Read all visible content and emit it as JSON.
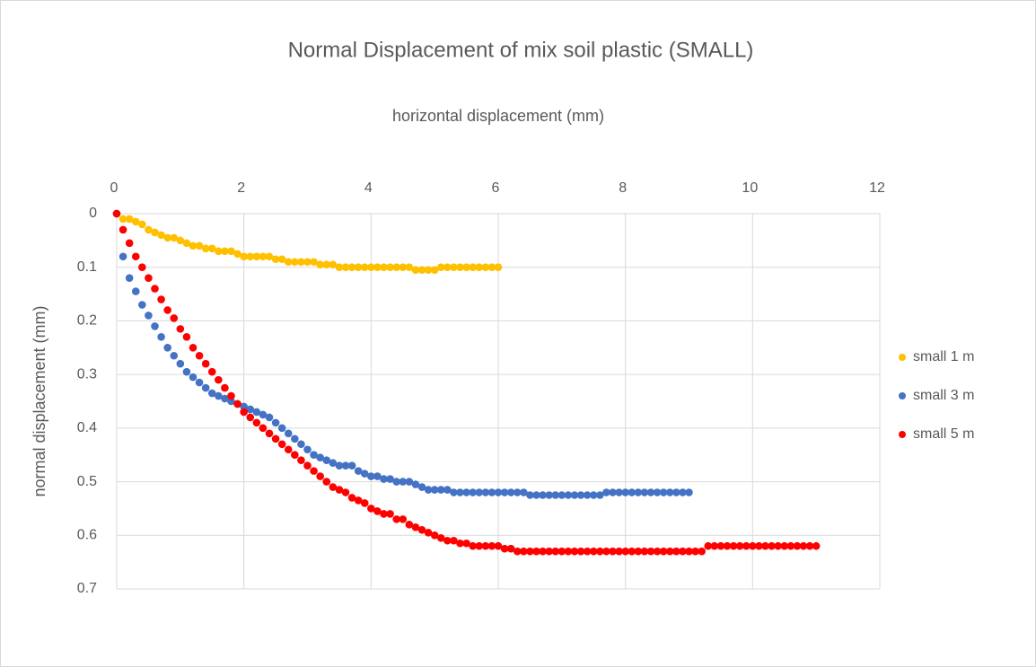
{
  "chart_data": {
    "type": "scatter",
    "title": "Normal Displacement of mix soil plastic (SMALL)",
    "x_label": "horizontal displacement (mm)",
    "y_label": "normal displacement (mm)",
    "xlim": [
      0,
      12
    ],
    "xticks": [
      0,
      2,
      4,
      6,
      8,
      10,
      12
    ],
    "ylim": [
      0,
      0.7
    ],
    "yticks": [
      0,
      0.1,
      0.2,
      0.3,
      0.4,
      0.5,
      0.6,
      0.7
    ],
    "y_inverted": true,
    "x_axis_position": "top",
    "grid": true,
    "legend": "right",
    "series": [
      {
        "name": "small 1 m",
        "color": "#ffc000",
        "x": [
          0,
          0.1,
          0.2,
          0.3,
          0.4,
          0.5,
          0.6,
          0.7,
          0.8,
          0.9,
          1,
          1.1,
          1.2,
          1.3,
          1.4,
          1.5,
          1.6,
          1.7,
          1.8,
          1.9,
          2,
          2.1,
          2.2,
          2.3,
          2.4,
          2.5,
          2.6,
          2.7,
          2.8,
          2.9,
          3,
          3.1,
          3.2,
          3.3,
          3.4,
          3.5,
          3.6,
          3.7,
          3.8,
          3.9,
          4,
          4.1,
          4.2,
          4.3,
          4.4,
          4.5,
          4.6,
          4.7,
          4.8,
          4.9,
          5,
          5.1,
          5.2,
          5.3,
          5.4,
          5.5,
          5.6,
          5.7,
          5.8,
          5.9,
          6
        ],
        "values": [
          0,
          0.01,
          0.01,
          0.015,
          0.02,
          0.03,
          0.035,
          0.04,
          0.045,
          0.045,
          0.05,
          0.055,
          0.06,
          0.06,
          0.065,
          0.065,
          0.07,
          0.07,
          0.07,
          0.075,
          0.08,
          0.08,
          0.08,
          0.08,
          0.08,
          0.085,
          0.085,
          0.09,
          0.09,
          0.09,
          0.09,
          0.09,
          0.095,
          0.095,
          0.095,
          0.1,
          0.1,
          0.1,
          0.1,
          0.1,
          0.1,
          0.1,
          0.1,
          0.1,
          0.1,
          0.1,
          0.1,
          0.105,
          0.105,
          0.105,
          0.105,
          0.1,
          0.1,
          0.1,
          0.1,
          0.1,
          0.1,
          0.1,
          0.1,
          0.1,
          0.1
        ]
      },
      {
        "name": "small 3 m",
        "color": "#4472c4",
        "x": [
          0,
          0.1,
          0.2,
          0.3,
          0.4,
          0.5,
          0.6,
          0.7,
          0.8,
          0.9,
          1,
          1.1,
          1.2,
          1.3,
          1.4,
          1.5,
          1.6,
          1.7,
          1.8,
          1.9,
          2,
          2.1,
          2.2,
          2.3,
          2.4,
          2.5,
          2.6,
          2.7,
          2.8,
          2.9,
          3,
          3.1,
          3.2,
          3.3,
          3.4,
          3.5,
          3.6,
          3.7,
          3.8,
          3.9,
          4,
          4.1,
          4.2,
          4.3,
          4.4,
          4.5,
          4.6,
          4.7,
          4.8,
          4.9,
          5,
          5.1,
          5.2,
          5.3,
          5.4,
          5.5,
          5.6,
          5.7,
          5.8,
          5.9,
          6,
          6.1,
          6.2,
          6.3,
          6.4,
          6.5,
          6.6,
          6.7,
          6.8,
          6.9,
          7,
          7.1,
          7.2,
          7.3,
          7.4,
          7.5,
          7.6,
          7.7,
          7.8,
          7.9,
          8,
          8.1,
          8.2,
          8.3,
          8.4,
          8.5,
          8.6,
          8.7,
          8.8,
          8.9,
          9
        ],
        "values": [
          0,
          0.08,
          0.12,
          0.145,
          0.17,
          0.19,
          0.21,
          0.23,
          0.25,
          0.265,
          0.28,
          0.295,
          0.305,
          0.315,
          0.325,
          0.335,
          0.34,
          0.345,
          0.35,
          0.355,
          0.36,
          0.365,
          0.37,
          0.375,
          0.38,
          0.39,
          0.4,
          0.41,
          0.42,
          0.43,
          0.44,
          0.45,
          0.455,
          0.46,
          0.465,
          0.47,
          0.47,
          0.47,
          0.48,
          0.485,
          0.49,
          0.49,
          0.495,
          0.495,
          0.5,
          0.5,
          0.5,
          0.505,
          0.51,
          0.515,
          0.515,
          0.515,
          0.515,
          0.52,
          0.52,
          0.52,
          0.52,
          0.52,
          0.52,
          0.52,
          0.52,
          0.52,
          0.52,
          0.52,
          0.52,
          0.525,
          0.525,
          0.525,
          0.525,
          0.525,
          0.525,
          0.525,
          0.525,
          0.525,
          0.525,
          0.525,
          0.525,
          0.52,
          0.52,
          0.52,
          0.52,
          0.52,
          0.52,
          0.52,
          0.52,
          0.52,
          0.52,
          0.52,
          0.52,
          0.52,
          0.52
        ]
      },
      {
        "name": "small 5 m",
        "color": "#ff0000",
        "x": [
          0,
          0.1,
          0.2,
          0.3,
          0.4,
          0.5,
          0.6,
          0.7,
          0.8,
          0.9,
          1,
          1.1,
          1.2,
          1.3,
          1.4,
          1.5,
          1.6,
          1.7,
          1.8,
          1.9,
          2,
          2.1,
          2.2,
          2.3,
          2.4,
          2.5,
          2.6,
          2.7,
          2.8,
          2.9,
          3,
          3.1,
          3.2,
          3.3,
          3.4,
          3.5,
          3.6,
          3.7,
          3.8,
          3.9,
          4,
          4.1,
          4.2,
          4.3,
          4.4,
          4.5,
          4.6,
          4.7,
          4.8,
          4.9,
          5,
          5.1,
          5.2,
          5.3,
          5.4,
          5.5,
          5.6,
          5.7,
          5.8,
          5.9,
          6,
          6.1,
          6.2,
          6.3,
          6.4,
          6.5,
          6.6,
          6.7,
          6.8,
          6.9,
          7,
          7.1,
          7.2,
          7.3,
          7.4,
          7.5,
          7.6,
          7.7,
          7.8,
          7.9,
          8,
          8.1,
          8.2,
          8.3,
          8.4,
          8.5,
          8.6,
          8.7,
          8.8,
          8.9,
          9,
          9.1,
          9.2,
          9.3,
          9.4,
          9.5,
          9.6,
          9.7,
          9.8,
          9.9,
          10,
          10.1,
          10.2,
          10.3,
          10.4,
          10.5,
          10.6,
          10.7,
          10.8,
          10.9,
          11
        ],
        "values": [
          0,
          0.03,
          0.055,
          0.08,
          0.1,
          0.12,
          0.14,
          0.16,
          0.18,
          0.195,
          0.215,
          0.23,
          0.25,
          0.265,
          0.28,
          0.295,
          0.31,
          0.325,
          0.34,
          0.355,
          0.37,
          0.38,
          0.39,
          0.4,
          0.41,
          0.42,
          0.43,
          0.44,
          0.45,
          0.46,
          0.47,
          0.48,
          0.49,
          0.5,
          0.51,
          0.515,
          0.52,
          0.53,
          0.535,
          0.54,
          0.55,
          0.555,
          0.56,
          0.56,
          0.57,
          0.57,
          0.58,
          0.585,
          0.59,
          0.595,
          0.6,
          0.605,
          0.61,
          0.61,
          0.615,
          0.615,
          0.62,
          0.62,
          0.62,
          0.62,
          0.62,
          0.625,
          0.625,
          0.63,
          0.63,
          0.63,
          0.63,
          0.63,
          0.63,
          0.63,
          0.63,
          0.63,
          0.63,
          0.63,
          0.63,
          0.63,
          0.63,
          0.63,
          0.63,
          0.63,
          0.63,
          0.63,
          0.63,
          0.63,
          0.63,
          0.63,
          0.63,
          0.63,
          0.63,
          0.63,
          0.63,
          0.63,
          0.63,
          0.62,
          0.62,
          0.62,
          0.62,
          0.62,
          0.62,
          0.62,
          0.62,
          0.62,
          0.62,
          0.62,
          0.62,
          0.62,
          0.62,
          0.62,
          0.62,
          0.62,
          0.62
        ]
      }
    ]
  }
}
